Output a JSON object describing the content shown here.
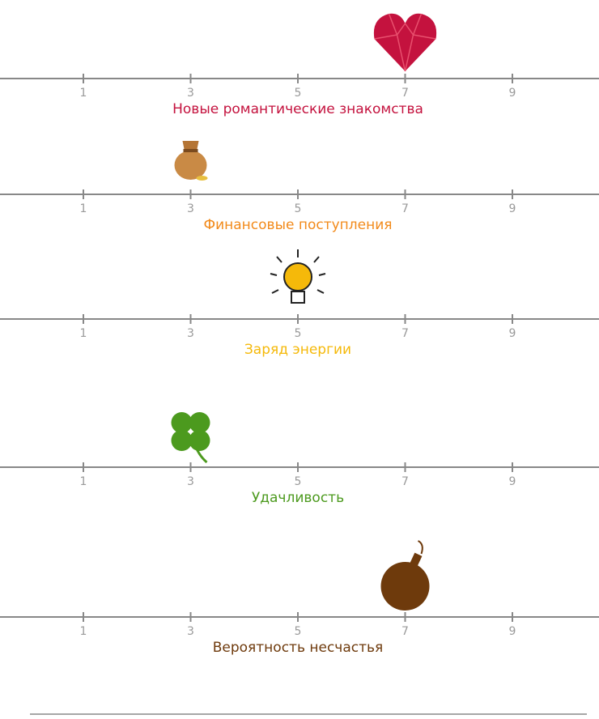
{
  "xticks": [
    1,
    3,
    5,
    7,
    9
  ],
  "scales": [
    {
      "label": "Новые романтические знакомства",
      "value": 7,
      "color": "#c4123e"
    },
    {
      "label": "Финансовые поступления",
      "value": 3,
      "color": "#f28a1a"
    },
    {
      "label": "Заряд энергии",
      "value": 5,
      "color": "#f5b90a"
    },
    {
      "label": "Удачливость",
      "value": 3,
      "color": "#4c9a1e"
    },
    {
      "label": "Вероятность несчастья",
      "value": 7,
      "color": "#6e3a0c"
    }
  ]
}
